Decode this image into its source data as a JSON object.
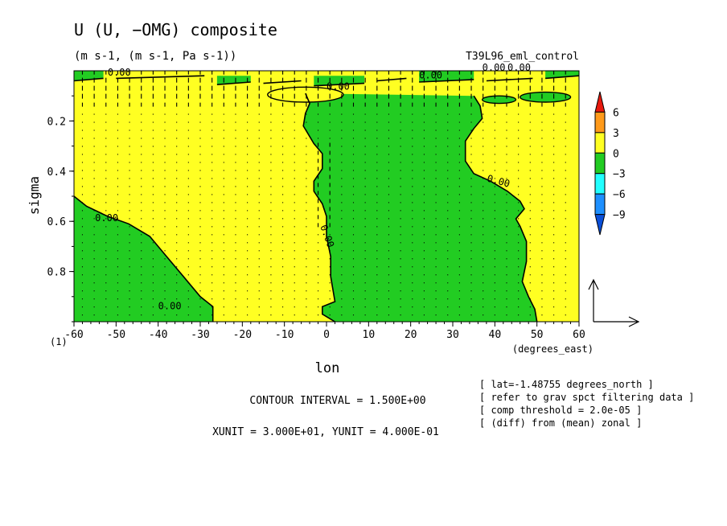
{
  "chart_data": {
    "type": "heatmap",
    "title": "U (U, −OMG) composite",
    "subtitle": "(m s-1, (m s-1, Pa s-1))",
    "run_label": "T39L96_eml_control",
    "xlabel": "lon",
    "x_units": "(degrees_east)",
    "ylabel": "sigma",
    "y_corner_label": "(1)",
    "xlim": [
      -60,
      60
    ],
    "ylim": [
      0,
      1
    ],
    "y_inverted": true,
    "x_ticks": [
      -60,
      -50,
      -40,
      -30,
      -20,
      -10,
      0,
      10,
      20,
      30,
      40,
      50,
      60
    ],
    "y_ticks": [
      0.2,
      0.4,
      0.6,
      0.8
    ],
    "y_tick_labels": [
      "0.2",
      "0.4",
      "0.6",
      "0.8"
    ],
    "contour_label": "0.00",
    "colorbar": {
      "levels": [
        "6",
        "3",
        "0",
        "−3",
        "−6",
        "−9"
      ],
      "colors": [
        "#e8190e",
        "#ff9a1a",
        "#ffff22",
        "#22cc22",
        "#22ffff",
        "#1e90ff",
        "#0a4fd8"
      ]
    },
    "field_colors": {
      "positive": "#ffff22",
      "negative": "#22cc22"
    },
    "negative_region_boundaries": [
      {
        "name": "west_lower",
        "left_edge": [
          [
            -60,
            0.5
          ],
          [
            -57,
            0.54
          ],
          [
            -52,
            0.58
          ],
          [
            -47,
            0.61
          ],
          [
            -42,
            0.66
          ],
          [
            -38,
            0.74
          ],
          [
            -34,
            0.82
          ],
          [
            -30,
            0.9
          ],
          [
            -27,
            0.94
          ],
          [
            -27,
            1.0
          ]
        ]
      },
      {
        "name": "central",
        "left_edge": [
          [
            -5,
            0.09
          ],
          [
            -4,
            0.13
          ],
          [
            -5,
            0.17
          ],
          [
            -5.5,
            0.22
          ],
          [
            -3,
            0.29
          ],
          [
            -1,
            0.33
          ],
          [
            -1,
            0.39
          ],
          [
            -3,
            0.44
          ],
          [
            -3,
            0.48
          ],
          [
            -1,
            0.53
          ],
          [
            0,
            0.58
          ],
          [
            0,
            0.66
          ],
          [
            1,
            0.74
          ],
          [
            1,
            0.82
          ],
          [
            2,
            0.92
          ],
          [
            -1,
            0.94
          ],
          [
            -1,
            0.97
          ],
          [
            2,
            1.0
          ]
        ],
        "right_edge": [
          [
            35,
            0.1
          ],
          [
            36.5,
            0.14
          ],
          [
            37,
            0.19
          ],
          [
            35,
            0.23
          ],
          [
            33,
            0.28
          ],
          [
            33,
            0.36
          ],
          [
            35,
            0.41
          ],
          [
            39,
            0.44
          ],
          [
            43,
            0.48
          ],
          [
            46,
            0.52
          ],
          [
            47,
            0.55
          ],
          [
            45,
            0.59
          ],
          [
            46,
            0.62
          ],
          [
            47.5,
            0.68
          ],
          [
            47.5,
            0.76
          ],
          [
            46.5,
            0.84
          ],
          [
            48,
            0.9
          ],
          [
            49.5,
            0.95
          ],
          [
            50,
            1.0
          ]
        ]
      }
    ],
    "vector_reference": {
      "xunit": 30,
      "yunit": 0.4
    }
  },
  "info": {
    "contour_interval": "CONTOUR INTERVAL = 1.500E+00",
    "units_line": "XUNIT = 3.000E+01, YUNIT = 4.000E-01",
    "notes": [
      "[ lat=-1.48755 degrees_north ]",
      "[ refer to grav spct filtering data ]",
      "[ comp threshold = 2.0e-05 ]",
      "[ (diff) from (mean) zonal ]"
    ]
  }
}
